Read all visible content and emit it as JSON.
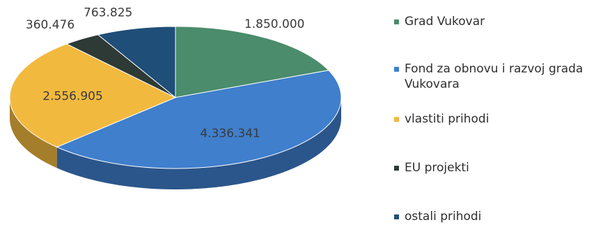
{
  "chart_data": {
    "type": "pie",
    "style": "3d",
    "series": [
      {
        "name": "Grad Vukovar",
        "value": 1850000,
        "label": "1.850.000",
        "color": "#4a8c6b"
      },
      {
        "name": "Fond za obnovu i razvoj grada Vukovara",
        "value": 4336341,
        "label": "4.336.341",
        "color": "#3f7fcc"
      },
      {
        "name": "vlastiti prihodi",
        "value": 2556905,
        "label": "2.556.905",
        "color": "#f2b93f"
      },
      {
        "name": "EU projekti",
        "value": 360476,
        "label": "360.476",
        "color": "#2e3a35"
      },
      {
        "name": "ostali prihodi",
        "value": 763825,
        "label": "763.825",
        "color": "#1f4e79"
      }
    ],
    "legend_position": "right"
  }
}
